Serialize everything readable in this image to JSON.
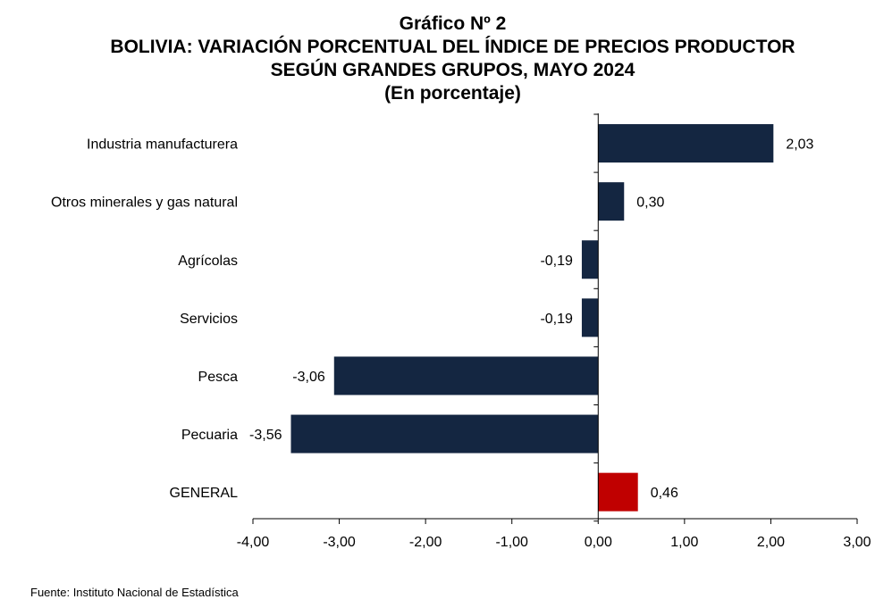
{
  "title": {
    "line1": "Gráfico Nº 2",
    "line2": "BOLIVIA: VARIACIÓN PORCENTUAL DEL ÍNDICE DE PRECIOS PRODUCTOR",
    "line3": "SEGÚN GRANDES GRUPOS, MAYO 2024",
    "line4": "(En porcentaje)"
  },
  "source": "Fuente: Instituto Nacional de Estadística",
  "colors": {
    "bar": "#142641",
    "highlight": "#c00000",
    "axis": "#000000"
  },
  "chart_data": {
    "type": "bar",
    "orientation": "horizontal",
    "categories": [
      "Industria manufacturera",
      "Otros minerales y gas natural",
      "Agrícolas",
      "Servicios",
      "Pesca",
      "Pecuaria",
      "GENERAL"
    ],
    "values": [
      2.03,
      0.3,
      -0.19,
      -0.19,
      -3.06,
      -3.56,
      0.46
    ],
    "value_labels": [
      "2,03",
      "0,30",
      "-0,19",
      "-0,19",
      "-3,06",
      "-3,56",
      "0,46"
    ],
    "highlight_category": "GENERAL",
    "xlim": [
      -4,
      3
    ],
    "xticks": [
      -4,
      -3,
      -2,
      -1,
      0,
      1,
      2,
      3
    ],
    "xtick_labels": [
      "-4,00",
      "-3,00",
      "-2,00",
      "-1,00",
      "0,00",
      "1,00",
      "2,00",
      "3,00"
    ],
    "xlabel": "",
    "ylabel": "",
    "grid": false,
    "legend": false
  }
}
